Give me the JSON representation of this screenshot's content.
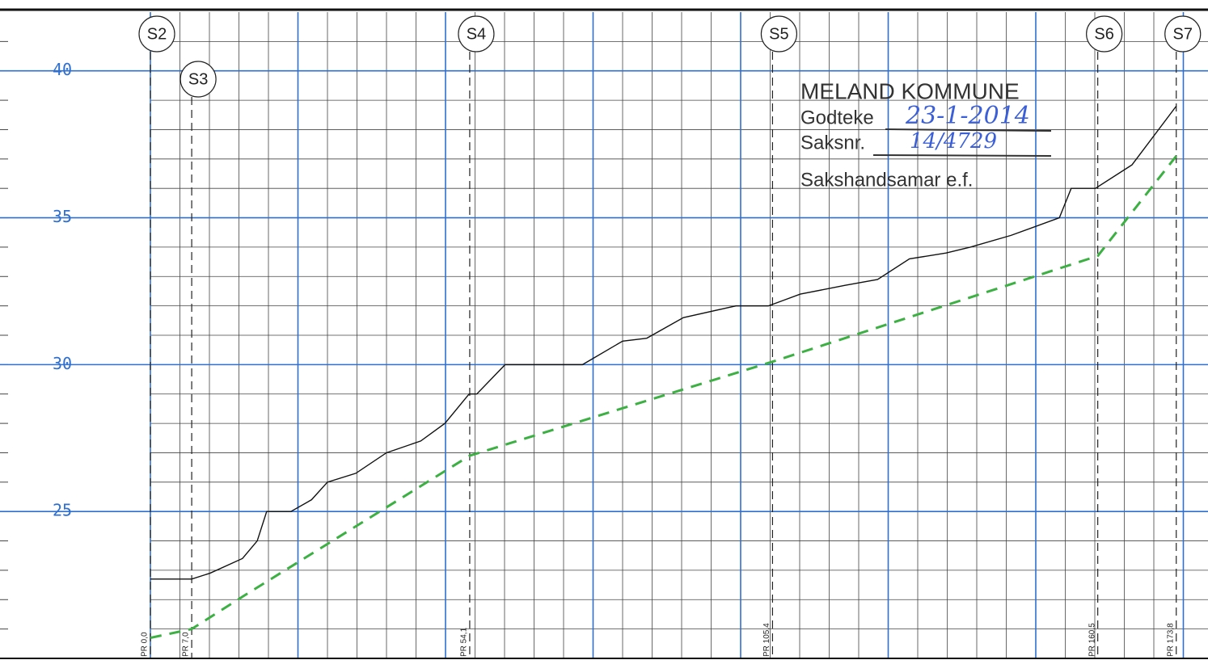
{
  "chart_data": {
    "type": "line",
    "ylim": [
      20,
      42
    ],
    "yticks": [
      25,
      30,
      35,
      40
    ],
    "xlim": [
      0,
      179
    ],
    "xgrid": [
      0,
      25,
      50,
      75,
      100,
      125,
      150,
      175
    ],
    "stations": [
      {
        "value": 0,
        "label": "PR 0,0",
        "section": "S2"
      },
      {
        "value": 7.0,
        "label": "PR 7,0",
        "section": "S3"
      },
      {
        "value": 54.1,
        "label": "PR 54,1",
        "section": "S4"
      },
      {
        "value": 105.4,
        "label": "PR 105,4",
        "section": "S5"
      },
      {
        "value": 160.5,
        "label": "PR 160,5",
        "section": "S6"
      },
      {
        "value": 173.8,
        "label": "PR 173,8",
        "section": "S7"
      }
    ],
    "series": [
      {
        "color": "#111111",
        "dashed": false,
        "x": [
          0,
          7.0,
          10.1,
          15.6,
          18.1,
          19.7,
          23.8,
          27.3,
          30.0,
          34.8,
          40.0,
          45.8,
          49.9,
          54.0,
          55.3,
          60.1,
          73.2,
          80.0,
          84.1,
          90.3,
          99.2,
          104.7,
          107.4,
          110.1,
          117.7,
          123.2,
          128.6,
          134.8,
          138.9,
          145.8,
          154.0,
          156.0,
          160.1,
          166.3,
          173.8
        ],
        "values": [
          22.7,
          22.7,
          22.9,
          23.4,
          24.0,
          25.0,
          25.0,
          25.4,
          26.0,
          26.3,
          27.0,
          27.4,
          28.0,
          29.0,
          29.0,
          30.0,
          30.0,
          30.8,
          30.9,
          31.6,
          32.0,
          32.0,
          32.2,
          32.4,
          32.7,
          32.9,
          33.6,
          33.8,
          34.0,
          34.4,
          35.0,
          36.0,
          36.0,
          36.8,
          38.8
        ]
      },
      {
        "color": "#3cb043",
        "dashed": true,
        "x": [
          0,
          7.0,
          15.6,
          54.1,
          105.4,
          160.5,
          173.8
        ],
        "values": [
          20.7,
          21.0,
          22.1,
          26.9,
          30.1,
          33.7,
          37.1
        ]
      }
    ]
  },
  "stamp": {
    "org": "MELAND KOMMUNE",
    "approved_label": "Godteke",
    "approved_date": "23-1-2014",
    "case_label": "Saksnr.",
    "case_no": "14/4729",
    "handler": "Sakshandsamar e.f."
  }
}
